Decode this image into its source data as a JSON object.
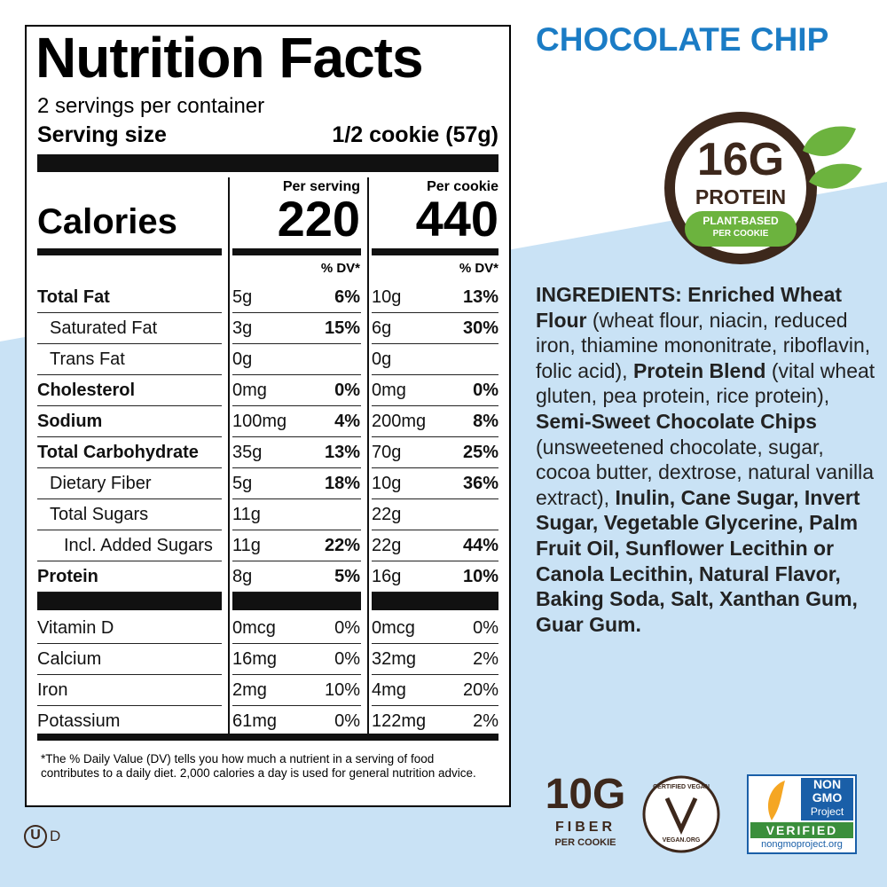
{
  "nutrition_facts": {
    "title": "Nutrition Facts",
    "servings": "2 servings per container",
    "serving_size_label": "Serving size",
    "serving_size": "1/2 cookie (57g)",
    "calories_label": "Calories",
    "columns": [
      "Per serving",
      "Per cookie"
    ],
    "calories": [
      "220",
      "440"
    ],
    "dv_header": "% DV*",
    "rows": [
      {
        "name": "Total Fat",
        "serving": "5g",
        "serving_dv": "6%",
        "cookie": "10g",
        "cookie_dv": "13%"
      },
      {
        "name": "Saturated Fat",
        "serving": "3g",
        "serving_dv": "15%",
        "cookie": "6g",
        "cookie_dv": "30%"
      },
      {
        "name": "Trans Fat",
        "serving": "0g",
        "cookie": "0g"
      },
      {
        "name": "Cholesterol",
        "serving": "0mg",
        "serving_dv": "0%",
        "cookie": "0mg",
        "cookie_dv": "0%"
      },
      {
        "name": "Sodium",
        "serving": "100mg",
        "serving_dv": "4%",
        "cookie": "200mg",
        "cookie_dv": "8%"
      },
      {
        "name": "Total Carbohydrate",
        "serving": "35g",
        "serving_dv": "13%",
        "cookie": "70g",
        "cookie_dv": "25%"
      },
      {
        "name": "Dietary Fiber",
        "serving": "5g",
        "serving_dv": "18%",
        "cookie": "10g",
        "cookie_dv": "36%"
      },
      {
        "name": "Total Sugars",
        "serving": "11g",
        "cookie": "22g"
      },
      {
        "name": "Incl. Added Sugars",
        "serving": "11g",
        "serving_dv": "22%",
        "cookie": "22g",
        "cookie_dv": "44%"
      },
      {
        "name": "Protein",
        "serving": "8g",
        "serving_dv": "5%",
        "cookie": "16g",
        "cookie_dv": "10%"
      }
    ],
    "vitamins": [
      {
        "name": "Vitamin D",
        "serving": "0mcg",
        "serving_dv": "0%",
        "cookie": "0mcg",
        "cookie_dv": "0%"
      },
      {
        "name": "Calcium",
        "serving": "16mg",
        "serving_dv": "0%",
        "cookie": "32mg",
        "cookie_dv": "2%"
      },
      {
        "name": "Iron",
        "serving": "2mg",
        "serving_dv": "10%",
        "cookie": "4mg",
        "cookie_dv": "20%"
      },
      {
        "name": "Potassium",
        "serving": "61mg",
        "serving_dv": "0%",
        "cookie": "122mg",
        "cookie_dv": "2%"
      }
    ],
    "footnote": "*The % Daily Value (DV) tells you how much a nutrient in a serving of food contributes to a daily diet. 2,000 calories a day is used for general nutrition advice."
  },
  "product": {
    "name": "CHOCOLATE CHIP"
  },
  "protein_badge": {
    "amount": "16G",
    "label": "PROTEIN",
    "line1": "PLANT-BASED",
    "line2": "PER COOKIE"
  },
  "ingredients": [
    "INGREDIENTS: Enriched Wheat Flour",
    " (wheat flour, niacin, reduced iron, thiamine mononitrate, riboflavin, folic acid), ",
    "Protein Blend",
    " (vital wheat gluten, pea protein, rice protein), ",
    "Semi-Sweet Chocolate Chips",
    " (unsweetened chocolate, sugar, cocoa butter, dextrose, natural vanilla extract), ",
    "Inulin, Cane Sugar, Invert Sugar, Vegetable Glycerine, Palm Fruit Oil, Sunflower Lecithin or Canola Lecithin, Natural Flavor, Baking Soda, Salt, Xanthan Gum, Guar Gum."
  ],
  "fiber_badge": {
    "amount": "10G",
    "label": "FIBER",
    "sub": "PER COOKIE"
  },
  "vegan_badge": {
    "top": "CERTIFIED VEGAN",
    "bottom": "VEGAN.ORG"
  },
  "non_gmo_badge": {
    "line1": "NON",
    "line2": "GMO",
    "line3": "Project",
    "verified": "VERIFIED",
    "url": "nongmoproject.org"
  },
  "kosher": {
    "symbol": "U",
    "suffix": "D"
  }
}
